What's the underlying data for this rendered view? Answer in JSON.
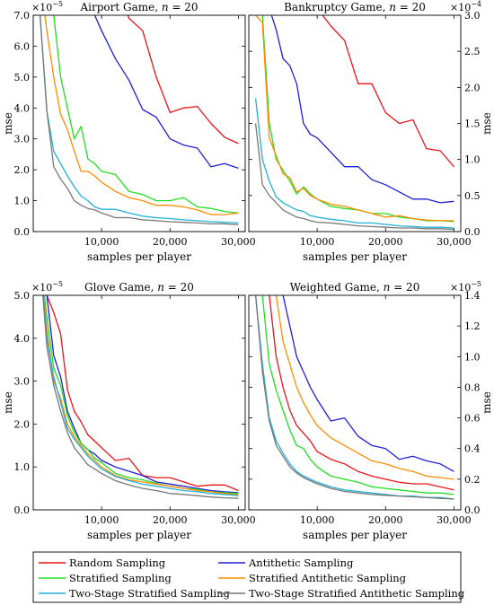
{
  "xlabel": "samples per player",
  "ylabel": "mse",
  "colors": {
    "Random Sampling": "#e8141a",
    "Antithetic Sampling": "#1f1fd6",
    "Stratified Sampling": "#22dd22",
    "Stratified Antithetic Sampling": "#ff8c00",
    "Two-Stage Stratified Sampling": "#22b0d8",
    "Two-Stage Stratified Antithetic Sampling": "#777777"
  },
  "legend": [
    "Random Sampling",
    "Antithetic Sampling",
    "Stratified Sampling",
    "Stratified Antithetic Sampling",
    "Two-Stage Stratified Sampling",
    "Two-Stage Stratified Antithetic Sampling"
  ],
  "chart_data": [
    {
      "type": "line",
      "title_prefix": "Airport Game, ",
      "title_n": "n",
      "title_suffix": " = 20",
      "scale_label": "×10",
      "scale_exp": "−5",
      "scale_pos": "top-left",
      "yaxis_side": "left",
      "xlim": [
        0,
        31000
      ],
      "ylim": [
        0,
        7
      ],
      "xticks": [
        10000,
        20000,
        30000
      ],
      "xtick_labels": [
        "10,000",
        "20,000",
        "30,000"
      ],
      "yticks": [
        0,
        1,
        2,
        3,
        4,
        5,
        6,
        7
      ],
      "ytick_labels": [
        "0.0",
        "1.0",
        "2.0",
        "3.0",
        "4.0",
        "5.0",
        "6.0",
        "7.0"
      ],
      "x": [
        1000,
        2000,
        3000,
        4000,
        5000,
        6000,
        7000,
        8000,
        9000,
        10000,
        12000,
        14000,
        16000,
        18000,
        20000,
        22000,
        24000,
        26000,
        28000,
        30000
      ],
      "series": [
        {
          "name": "Random Sampling",
          "values": [
            null,
            null,
            null,
            null,
            null,
            null,
            null,
            null,
            null,
            null,
            null,
            6.9,
            6.5,
            5.0,
            3.85,
            4.0,
            4.05,
            3.5,
            3.05,
            2.85
          ]
        },
        {
          "name": "Antithetic Sampling",
          "values": [
            null,
            null,
            null,
            null,
            null,
            null,
            null,
            null,
            7.0,
            6.5,
            5.6,
            4.9,
            3.95,
            3.7,
            3.0,
            2.8,
            2.7,
            2.1,
            2.2,
            2.05
          ]
        },
        {
          "name": "Stratified Sampling",
          "values": [
            null,
            null,
            7.0,
            5.0,
            4.0,
            3.0,
            3.4,
            2.35,
            2.2,
            1.95,
            1.85,
            1.3,
            1.2,
            1.0,
            1.0,
            1.1,
            0.8,
            0.75,
            0.65,
            0.6
          ]
        },
        {
          "name": "Stratified Antithetic Sampling",
          "values": [
            null,
            6.5,
            5.0,
            3.8,
            3.3,
            2.6,
            1.95,
            1.95,
            1.8,
            1.6,
            1.3,
            1.1,
            1.0,
            0.85,
            0.85,
            0.8,
            0.7,
            0.55,
            0.55,
            0.6
          ]
        },
        {
          "name": "Two-Stage Stratified Sampling",
          "values": [
            7.0,
            3.9,
            2.6,
            2.2,
            1.8,
            1.45,
            1.15,
            1.0,
            0.8,
            0.72,
            0.72,
            0.6,
            0.5,
            0.45,
            0.42,
            0.38,
            0.35,
            0.32,
            0.3,
            0.28
          ]
        },
        {
          "name": "Two-Stage Stratified Antithetic Sampling",
          "values": [
            7.0,
            3.9,
            2.1,
            1.7,
            1.4,
            1.0,
            0.85,
            0.75,
            0.7,
            0.6,
            0.45,
            0.45,
            0.38,
            0.35,
            0.32,
            0.3,
            0.28,
            0.25,
            0.25,
            0.22
          ]
        }
      ]
    },
    {
      "type": "line",
      "title_prefix": "Bankruptcy Game, ",
      "title_n": "n",
      "title_suffix": " = 20",
      "scale_label": "×10",
      "scale_exp": "−4",
      "scale_pos": "top-right",
      "yaxis_side": "right",
      "xlim": [
        0,
        31000
      ],
      "ylim": [
        0,
        3
      ],
      "xticks": [
        10000,
        20000,
        30000
      ],
      "xtick_labels": [
        "10,000",
        "20,000",
        "30,000"
      ],
      "yticks": [
        0,
        0.5,
        1,
        1.5,
        2,
        2.5,
        3
      ],
      "ytick_labels": [
        "0.0",
        "0.5",
        "1.0",
        "1.5",
        "2.0",
        "2.5",
        "3.0"
      ],
      "x": [
        1000,
        2000,
        3000,
        4000,
        5000,
        6000,
        7000,
        8000,
        9000,
        10000,
        12000,
        14000,
        16000,
        18000,
        20000,
        22000,
        24000,
        26000,
        28000,
        30000
      ],
      "series": [
        {
          "name": "Random Sampling",
          "values": [
            null,
            null,
            null,
            null,
            null,
            null,
            null,
            null,
            null,
            3.1,
            2.85,
            2.65,
            2.05,
            2.05,
            1.65,
            1.5,
            1.55,
            1.15,
            1.12,
            0.9
          ]
        },
        {
          "name": "Antithetic Sampling",
          "values": [
            null,
            null,
            3.1,
            2.8,
            2.4,
            2.3,
            2.05,
            1.5,
            1.35,
            1.3,
            1.1,
            0.9,
            0.9,
            0.72,
            0.65,
            0.55,
            0.45,
            0.45,
            0.4,
            0.42
          ]
        },
        {
          "name": "Stratified Sampling",
          "values": [
            null,
            3.0,
            1.5,
            1.0,
            0.85,
            0.7,
            0.52,
            0.62,
            0.52,
            0.45,
            0.35,
            0.32,
            0.3,
            0.25,
            0.25,
            0.2,
            0.18,
            0.15,
            0.15,
            0.14
          ]
        },
        {
          "name": "Stratified Antithetic Sampling",
          "values": [
            3.0,
            2.9,
            1.3,
            1.05,
            0.8,
            0.75,
            0.55,
            0.6,
            0.5,
            0.45,
            0.38,
            0.35,
            0.3,
            0.25,
            0.2,
            0.22,
            0.18,
            0.16,
            0.15,
            0.15
          ]
        },
        {
          "name": "Two-Stage Stratified Sampling",
          "values": [
            1.85,
            1.0,
            0.7,
            0.48,
            0.4,
            0.35,
            0.3,
            0.28,
            0.22,
            0.2,
            0.17,
            0.15,
            0.12,
            0.12,
            0.1,
            0.08,
            0.07,
            0.06,
            0.06,
            0.05
          ]
        },
        {
          "name": "Two-Stage Stratified Antithetic Sampling",
          "values": [
            1.5,
            0.65,
            0.5,
            0.4,
            0.3,
            0.25,
            0.2,
            0.18,
            0.15,
            0.13,
            0.12,
            0.1,
            0.08,
            0.07,
            0.06,
            0.05,
            0.05,
            0.04,
            0.04,
            0.03
          ]
        }
      ]
    },
    {
      "type": "line",
      "title_prefix": "Glove Game, ",
      "title_n": "n",
      "title_suffix": " = 20",
      "scale_label": "×10",
      "scale_exp": "−5",
      "scale_pos": "top-left",
      "yaxis_side": "left",
      "xlim": [
        0,
        31000
      ],
      "ylim": [
        0,
        5
      ],
      "xticks": [
        10000,
        20000,
        30000
      ],
      "xtick_labels": [
        "10,000",
        "20,000",
        "30,000"
      ],
      "yticks": [
        0,
        1,
        2,
        3,
        4,
        5
      ],
      "ytick_labels": [
        "0.0",
        "1.0",
        "2.0",
        "3.0",
        "4.0",
        "5.0"
      ],
      "x": [
        1000,
        2000,
        3000,
        4000,
        5000,
        6000,
        7000,
        8000,
        9000,
        10000,
        12000,
        14000,
        16000,
        18000,
        20000,
        22000,
        24000,
        26000,
        28000,
        30000
      ],
      "series": [
        {
          "name": "Random Sampling",
          "values": [
            null,
            5.0,
            4.6,
            4.1,
            2.8,
            2.3,
            2.05,
            1.75,
            1.6,
            1.45,
            1.15,
            1.2,
            0.8,
            0.75,
            0.75,
            0.65,
            0.55,
            0.58,
            0.58,
            0.45
          ]
        },
        {
          "name": "Antithetic Sampling",
          "values": [
            null,
            5.0,
            3.6,
            3.1,
            2.3,
            1.9,
            1.55,
            1.4,
            1.3,
            1.15,
            1.0,
            0.9,
            0.8,
            0.65,
            0.6,
            0.55,
            0.5,
            0.45,
            0.42,
            0.4
          ]
        },
        {
          "name": "Stratified Sampling",
          "values": [
            null,
            4.5,
            3.3,
            2.9,
            2.2,
            1.8,
            1.55,
            1.4,
            1.2,
            1.1,
            0.85,
            0.75,
            0.7,
            0.62,
            0.55,
            0.5,
            0.48,
            0.42,
            0.4,
            0.38
          ]
        },
        {
          "name": "Stratified Antithetic Sampling",
          "values": [
            null,
            4.2,
            3.0,
            2.6,
            2.0,
            1.7,
            1.5,
            1.3,
            1.15,
            1.0,
            0.8,
            0.7,
            0.65,
            0.6,
            0.55,
            0.5,
            0.45,
            0.42,
            0.38,
            0.35
          ]
        },
        {
          "name": "Two-Stage Stratified Sampling",
          "values": [
            null,
            4.0,
            3.1,
            2.5,
            1.9,
            1.65,
            1.45,
            1.25,
            1.1,
            0.95,
            0.78,
            0.68,
            0.6,
            0.55,
            0.5,
            0.45,
            0.42,
            0.38,
            0.36,
            0.33
          ]
        },
        {
          "name": "Two-Stage Stratified Antithetic Sampling",
          "values": [
            null,
            3.8,
            2.9,
            2.3,
            1.8,
            1.45,
            1.25,
            1.05,
            0.95,
            0.85,
            0.68,
            0.58,
            0.5,
            0.45,
            0.38,
            0.36,
            0.33,
            0.3,
            0.28,
            0.27
          ]
        }
      ]
    },
    {
      "type": "line",
      "title_prefix": "Weighted Game, ",
      "title_n": "n",
      "title_suffix": " = 20",
      "scale_label": "×10",
      "scale_exp": "−5",
      "scale_pos": "top-right",
      "yaxis_side": "right",
      "xlim": [
        0,
        31000
      ],
      "ylim": [
        0,
        1.4
      ],
      "xticks": [
        10000,
        20000,
        30000
      ],
      "xtick_labels": [
        "10,000",
        "20,000",
        "30,000"
      ],
      "yticks": [
        0,
        0.2,
        0.4,
        0.6,
        0.8,
        1.0,
        1.2,
        1.4
      ],
      "ytick_labels": [
        "0.0",
        "0.2",
        "0.4",
        "0.6",
        "0.8",
        "1.0",
        "1.2",
        "1.4"
      ],
      "x": [
        1000,
        2000,
        3000,
        4000,
        5000,
        6000,
        7000,
        8000,
        9000,
        10000,
        12000,
        14000,
        16000,
        18000,
        20000,
        22000,
        24000,
        26000,
        28000,
        30000
      ],
      "series": [
        {
          "name": "Random Sampling",
          "values": [
            null,
            null,
            1.4,
            1.0,
            0.8,
            0.65,
            0.55,
            0.5,
            0.45,
            0.38,
            0.33,
            0.3,
            0.25,
            0.22,
            0.2,
            0.18,
            0.17,
            0.17,
            0.15,
            0.13
          ]
        },
        {
          "name": "Antithetic Sampling",
          "values": [
            null,
            null,
            null,
            null,
            1.4,
            1.2,
            1.0,
            0.9,
            0.8,
            0.72,
            0.58,
            0.6,
            0.48,
            0.42,
            0.4,
            0.33,
            0.35,
            0.32,
            0.3,
            0.25
          ]
        },
        {
          "name": "Stratified Sampling",
          "values": [
            null,
            1.4,
            0.95,
            0.78,
            0.65,
            0.52,
            0.42,
            0.4,
            0.33,
            0.28,
            0.22,
            0.2,
            0.18,
            0.15,
            0.14,
            0.13,
            0.12,
            0.11,
            0.11,
            0.1
          ]
        },
        {
          "name": "Stratified Antithetic Sampling",
          "values": [
            null,
            null,
            null,
            1.4,
            1.1,
            0.95,
            0.8,
            0.7,
            0.62,
            0.55,
            0.47,
            0.42,
            0.37,
            0.32,
            0.3,
            0.27,
            0.25,
            0.22,
            0.21,
            0.2
          ]
        },
        {
          "name": "Two-Stage Stratified Sampling",
          "values": [
            1.4,
            0.95,
            0.6,
            0.45,
            0.37,
            0.3,
            0.25,
            0.22,
            0.2,
            0.18,
            0.15,
            0.13,
            0.12,
            0.11,
            0.1,
            0.09,
            0.09,
            0.08,
            0.08,
            0.07
          ]
        },
        {
          "name": "Two-Stage Stratified Antithetic Sampling",
          "values": [
            1.4,
            0.9,
            0.58,
            0.42,
            0.35,
            0.28,
            0.24,
            0.21,
            0.19,
            0.17,
            0.14,
            0.12,
            0.11,
            0.1,
            0.095,
            0.09,
            0.085,
            0.08,
            0.075,
            0.07
          ]
        }
      ]
    }
  ]
}
